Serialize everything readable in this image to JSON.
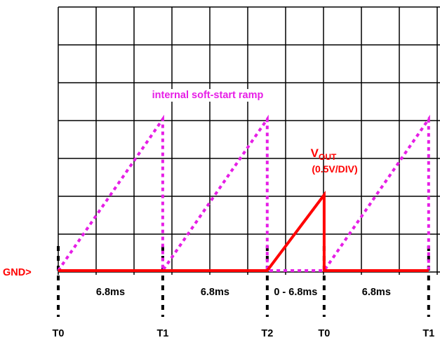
{
  "chart_data": {
    "type": "line",
    "title": "",
    "xlabel": "",
    "ylabel": "",
    "x_unit": "ms",
    "y_scale_note": "0.5V/DIV",
    "grid": true,
    "colors": {
      "ramp": "#e61ee6",
      "vout": "#ff0000",
      "grid": "#000000"
    },
    "ground_label": "GND>",
    "x_tick_labels": [
      {
        "t": 0.0,
        "label": "T0"
      },
      {
        "t": 6.8,
        "label": "T1"
      },
      {
        "t": 13.6,
        "label": "T2"
      },
      {
        "t": 17.3,
        "label": "T0"
      },
      {
        "t": 24.1,
        "label": "T1"
      }
    ],
    "interval_labels": [
      {
        "t": 3.4,
        "label": "6.8ms"
      },
      {
        "t": 10.2,
        "label": "6.8ms"
      },
      {
        "t": 15.45,
        "label": "0 - 6.8ms"
      },
      {
        "t": 20.7,
        "label": "6.8ms"
      }
    ],
    "series": [
      {
        "name": "internal soft-start ramp",
        "style": "dotted",
        "points": [
          [
            0.0,
            0.0
          ],
          [
            6.8,
            4.0
          ],
          [
            6.8,
            0.0
          ],
          [
            13.6,
            4.0
          ],
          [
            13.6,
            0.0
          ],
          [
            17.3,
            0.0
          ],
          [
            24.1,
            4.0
          ],
          [
            24.1,
            0.0
          ]
        ]
      },
      {
        "name": "VOUT",
        "subscript": "OUT",
        "base": "V",
        "scale_label": "(0.5V/DIV)",
        "style": "solid",
        "points": [
          [
            0.0,
            0.0
          ],
          [
            13.6,
            0.0
          ],
          [
            17.3,
            2.0
          ],
          [
            17.3,
            0.0
          ],
          [
            24.1,
            0.0
          ]
        ]
      }
    ]
  }
}
